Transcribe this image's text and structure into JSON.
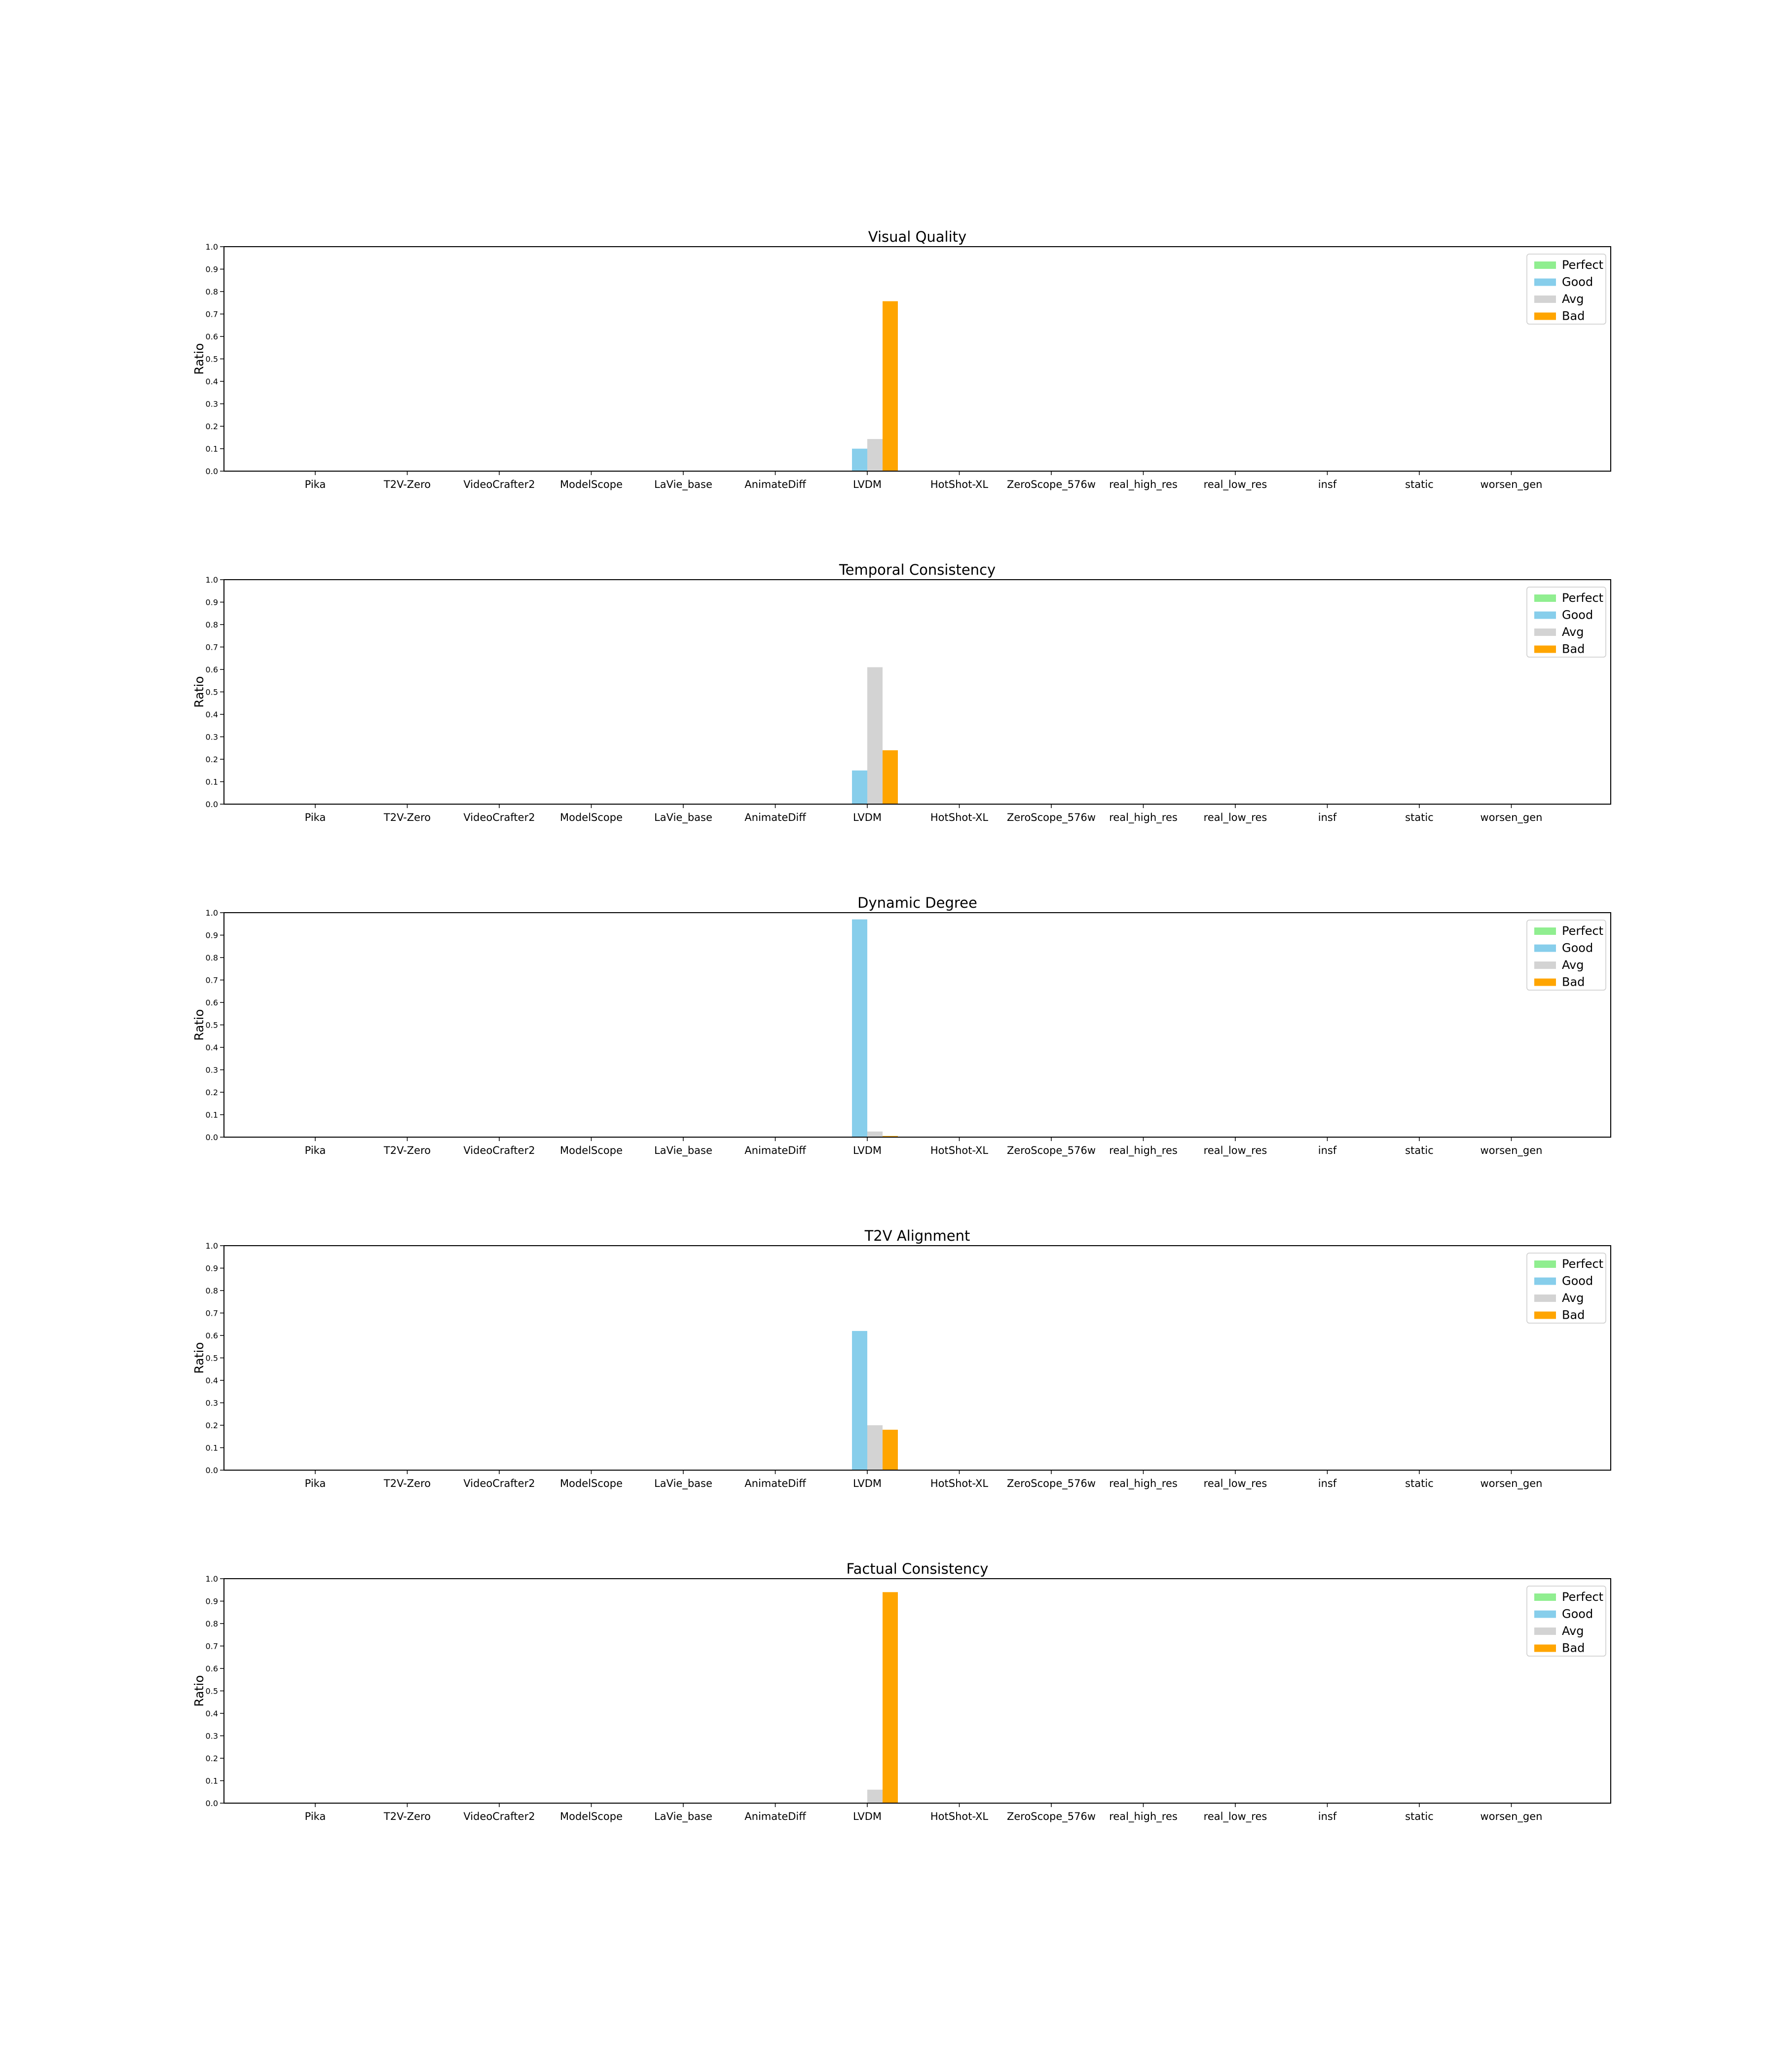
{
  "chart_data": {
    "type": "bar",
    "categories": [
      "Pika",
      "T2V-Zero",
      "VideoCrafter2",
      "ModelScope",
      "LaVie_base",
      "AnimateDiff",
      "LVDM",
      "HotShot-XL",
      "ZeroScope_576w",
      "real_high_res",
      "real_low_res",
      "insf",
      "static",
      "worsen_gen"
    ],
    "legend": [
      "Perfect",
      "Good",
      "Avg",
      "Bad"
    ],
    "legend_placement": "top-right",
    "colors": {
      "Perfect": "#90ee90",
      "Good": "#87ceeb",
      "Avg": "#d3d3d3",
      "Bad": "#ffa500"
    },
    "ylabel": "Ratio",
    "ylim": [
      0,
      1.0
    ],
    "yticks": [
      "0.0",
      "0.1",
      "0.2",
      "0.3",
      "0.4",
      "0.5",
      "0.6",
      "0.7",
      "0.8",
      "0.9",
      "1.0"
    ],
    "panels": [
      {
        "title": "Visual Quality",
        "series": {
          "Perfect": [
            0,
            0,
            0,
            0,
            0,
            0,
            0,
            0,
            0,
            0,
            0,
            0,
            0,
            0
          ],
          "Good": [
            0,
            0,
            0,
            0,
            0,
            0,
            0.1,
            0,
            0,
            0,
            0,
            0,
            0,
            0
          ],
          "Avg": [
            0,
            0,
            0,
            0,
            0,
            0,
            0.143,
            0,
            0,
            0,
            0,
            0,
            0,
            0
          ],
          "Bad": [
            0,
            0,
            0,
            0,
            0,
            0,
            0.757,
            0,
            0,
            0,
            0,
            0,
            0,
            0
          ]
        }
      },
      {
        "title": "Temporal Consistency",
        "series": {
          "Perfect": [
            0,
            0,
            0,
            0,
            0,
            0,
            0,
            0,
            0,
            0,
            0,
            0,
            0,
            0
          ],
          "Good": [
            0,
            0,
            0,
            0,
            0,
            0,
            0.15,
            0,
            0,
            0,
            0,
            0,
            0,
            0
          ],
          "Avg": [
            0,
            0,
            0,
            0,
            0,
            0,
            0.61,
            0,
            0,
            0,
            0,
            0,
            0,
            0
          ],
          "Bad": [
            0,
            0,
            0,
            0,
            0,
            0,
            0.24,
            0,
            0,
            0,
            0,
            0,
            0,
            0
          ]
        }
      },
      {
        "title": "Dynamic Degree",
        "series": {
          "Perfect": [
            0,
            0,
            0,
            0,
            0,
            0,
            0,
            0,
            0,
            0,
            0,
            0,
            0,
            0
          ],
          "Good": [
            0,
            0,
            0,
            0,
            0,
            0,
            0.97,
            0,
            0,
            0,
            0,
            0,
            0,
            0
          ],
          "Avg": [
            0,
            0,
            0,
            0,
            0,
            0,
            0.025,
            0,
            0,
            0,
            0,
            0,
            0,
            0
          ],
          "Bad": [
            0,
            0,
            0,
            0,
            0,
            0,
            0.005,
            0,
            0,
            0,
            0,
            0,
            0,
            0
          ]
        }
      },
      {
        "title": "T2V Alignment",
        "series": {
          "Perfect": [
            0,
            0,
            0,
            0,
            0,
            0,
            0,
            0,
            0,
            0,
            0,
            0,
            0,
            0
          ],
          "Good": [
            0,
            0,
            0,
            0,
            0,
            0,
            0.62,
            0,
            0,
            0,
            0,
            0,
            0,
            0
          ],
          "Avg": [
            0,
            0,
            0,
            0,
            0,
            0,
            0.2,
            0,
            0,
            0,
            0,
            0,
            0,
            0
          ],
          "Bad": [
            0,
            0,
            0,
            0,
            0,
            0,
            0.18,
            0,
            0,
            0,
            0,
            0,
            0,
            0
          ]
        }
      },
      {
        "title": "Factual Consistency",
        "series": {
          "Perfect": [
            0,
            0,
            0,
            0,
            0,
            0,
            0,
            0,
            0,
            0,
            0,
            0,
            0,
            0
          ],
          "Good": [
            0,
            0,
            0,
            0,
            0,
            0,
            0,
            0,
            0,
            0,
            0,
            0,
            0,
            0
          ],
          "Avg": [
            0,
            0,
            0,
            0,
            0,
            0,
            0.06,
            0,
            0,
            0,
            0,
            0,
            0,
            0
          ],
          "Bad": [
            0,
            0,
            0,
            0,
            0,
            0,
            0.94,
            0,
            0,
            0,
            0,
            0,
            0,
            0
          ]
        }
      }
    ]
  }
}
